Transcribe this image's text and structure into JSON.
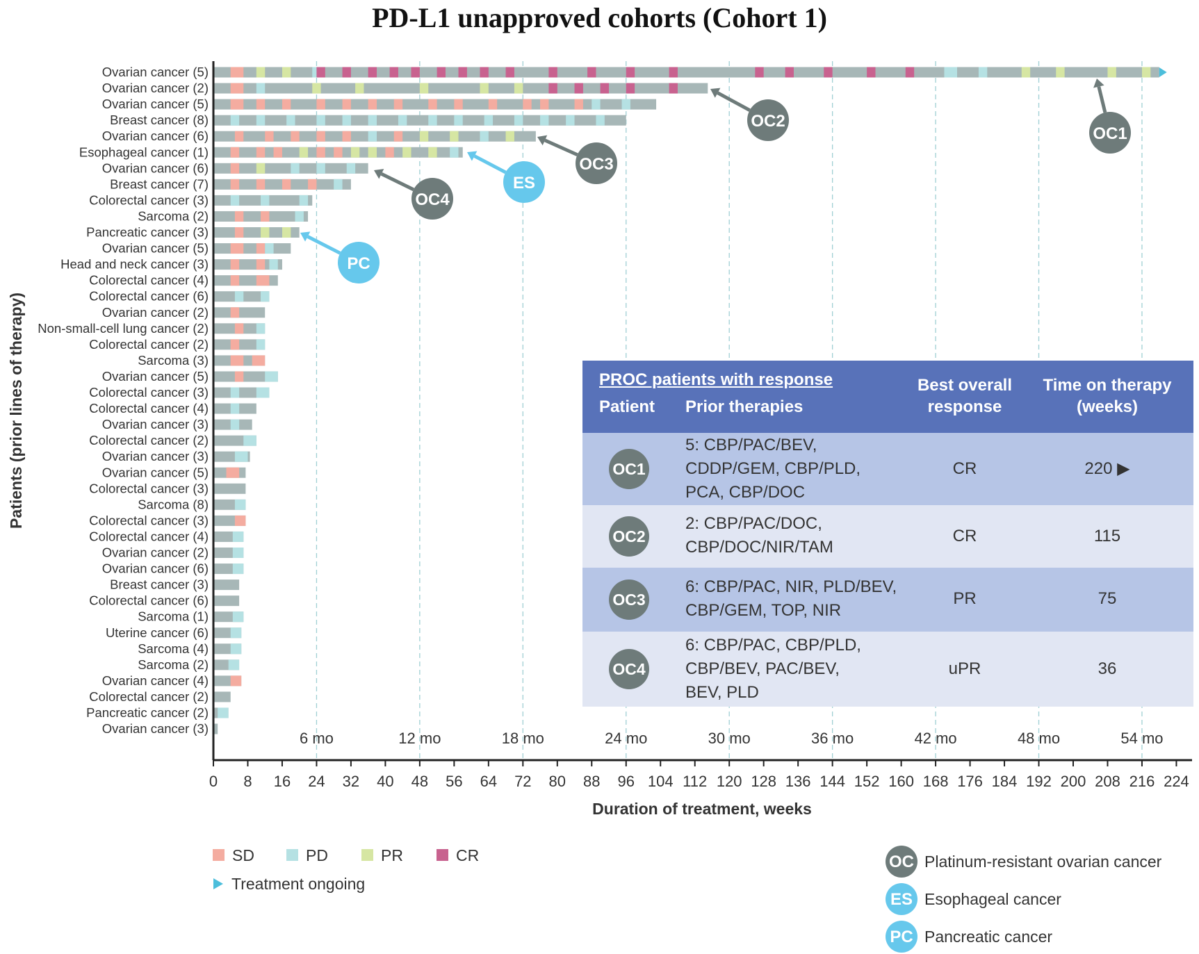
{
  "chart_data": {
    "type": "swimmer",
    "title": "PD-L1 unapproved cohorts (Cohort 1)",
    "xlabel": "Duration of treatment, weeks",
    "ylabel": "Patients (prior lines of therapy)",
    "xlim": [
      0,
      224
    ],
    "x_ticks": [
      "0",
      "8",
      "16",
      "24",
      "32",
      "40",
      "48",
      "56",
      "64",
      "72",
      "80",
      "88",
      "96",
      "104",
      "112",
      "120",
      "128",
      "136",
      "144",
      "152",
      "160",
      "168",
      "176",
      "184",
      "192",
      "200",
      "208",
      "216",
      "224"
    ],
    "month_markers": [
      {
        "label": "6 mo",
        "week": 24
      },
      {
        "label": "12 mo",
        "week": 48
      },
      {
        "label": "18 mo",
        "week": 72
      },
      {
        "label": "24 mo",
        "week": 96
      },
      {
        "label": "30 mo",
        "week": 120
      },
      {
        "label": "36 mo",
        "week": 144
      },
      {
        "label": "42 mo",
        "week": 168
      },
      {
        "label": "48 mo",
        "week": 192
      },
      {
        "label": "54 mo",
        "week": 216
      }
    ],
    "patients": [
      {
        "label": "Ovarian cancer (5)",
        "weeks": 220,
        "ongoing": true,
        "tag": "OC1",
        "segments": [
          [
            4,
            7,
            "SD"
          ],
          [
            10,
            12,
            "PR"
          ],
          [
            16,
            18,
            "PR"
          ],
          [
            23,
            25,
            "PD"
          ],
          [
            24,
            26,
            "CR"
          ],
          [
            30,
            32,
            "CR"
          ],
          [
            36,
            38,
            "CR"
          ],
          [
            41,
            43,
            "CR"
          ],
          [
            46,
            48,
            "CR"
          ],
          [
            52,
            54,
            "CR"
          ],
          [
            57,
            59,
            "CR"
          ],
          [
            62,
            64,
            "CR"
          ],
          [
            68,
            70,
            "CR"
          ],
          [
            78,
            80,
            "CR"
          ],
          [
            87,
            89,
            "CR"
          ],
          [
            96,
            98,
            "CR"
          ],
          [
            106,
            108,
            "CR"
          ],
          [
            126,
            128,
            "CR"
          ],
          [
            133,
            135,
            "CR"
          ],
          [
            142,
            144,
            "CR"
          ],
          [
            152,
            154,
            "CR"
          ],
          [
            161,
            163,
            "CR"
          ],
          [
            170,
            173,
            "PD"
          ],
          [
            178,
            180,
            "PD"
          ],
          [
            188,
            190,
            "PR"
          ],
          [
            196,
            198,
            "PR"
          ],
          [
            208,
            210,
            "PR"
          ],
          [
            216,
            218,
            "PR"
          ]
        ]
      },
      {
        "label": "Ovarian cancer (2)",
        "weeks": 115,
        "tag": "OC2",
        "segments": [
          [
            4,
            7,
            "SD"
          ],
          [
            10,
            12,
            "PD"
          ],
          [
            23,
            25,
            "PR"
          ],
          [
            33,
            35,
            "PR"
          ],
          [
            48,
            50,
            "PR"
          ],
          [
            62,
            64,
            "PR"
          ],
          [
            70,
            72,
            "PR"
          ],
          [
            78,
            80,
            "CR"
          ],
          [
            84,
            86,
            "CR"
          ],
          [
            90,
            92,
            "CR"
          ],
          [
            96,
            98,
            "CR"
          ],
          [
            106,
            108,
            "CR"
          ]
        ]
      },
      {
        "label": "Ovarian cancer (5)",
        "weeks": 103,
        "segments": [
          [
            4,
            7,
            "SD"
          ],
          [
            10,
            12,
            "SD"
          ],
          [
            16,
            18,
            "SD"
          ],
          [
            24,
            26,
            "SD"
          ],
          [
            30,
            32,
            "SD"
          ],
          [
            36,
            38,
            "SD"
          ],
          [
            42,
            44,
            "SD"
          ],
          [
            50,
            52,
            "SD"
          ],
          [
            56,
            58,
            "SD"
          ],
          [
            64,
            66,
            "SD"
          ],
          [
            72,
            74,
            "SD"
          ],
          [
            76,
            78,
            "SD"
          ],
          [
            84,
            86,
            "SD"
          ],
          [
            88,
            90,
            "PD"
          ],
          [
            95,
            97,
            "PD"
          ]
        ]
      },
      {
        "label": "Breast cancer (8)",
        "weeks": 96,
        "segments": [
          [
            4,
            6,
            "PD"
          ],
          [
            10,
            12,
            "PD"
          ],
          [
            17,
            19,
            "PD"
          ],
          [
            24,
            26,
            "PD"
          ],
          [
            30,
            32,
            "PD"
          ],
          [
            36,
            38,
            "PD"
          ],
          [
            43,
            45,
            "PD"
          ],
          [
            50,
            52,
            "PD"
          ],
          [
            56,
            58,
            "PD"
          ],
          [
            63,
            65,
            "PD"
          ],
          [
            70,
            72,
            "PD"
          ],
          [
            76,
            78,
            "PD"
          ],
          [
            82,
            84,
            "PD"
          ],
          [
            89,
            91,
            "PD"
          ]
        ]
      },
      {
        "label": "Ovarian cancer (6)",
        "weeks": 75,
        "tag": "OC3",
        "segments": [
          [
            5,
            7,
            "SD"
          ],
          [
            12,
            14,
            "SD"
          ],
          [
            18,
            20,
            "SD"
          ],
          [
            24,
            26,
            "SD"
          ],
          [
            30,
            32,
            "SD"
          ],
          [
            36,
            38,
            "PD"
          ],
          [
            42,
            44,
            "SD"
          ],
          [
            48,
            50,
            "PR"
          ],
          [
            55,
            57,
            "PR"
          ],
          [
            62,
            64,
            "PD"
          ],
          [
            68,
            70,
            "PR"
          ]
        ]
      },
      {
        "label": "Esophageal cancer (1)",
        "weeks": 58,
        "tag": "ES",
        "segments": [
          [
            4,
            6,
            "SD"
          ],
          [
            10,
            12,
            "SD"
          ],
          [
            14,
            16,
            "SD"
          ],
          [
            20,
            22,
            "PR"
          ],
          [
            24,
            26,
            "SD"
          ],
          [
            28,
            30,
            "SD"
          ],
          [
            32,
            34,
            "PR"
          ],
          [
            36,
            38,
            "PR"
          ],
          [
            40,
            42,
            "SD"
          ],
          [
            44,
            46,
            "PR"
          ],
          [
            50,
            52,
            "PR"
          ],
          [
            55,
            57,
            "PD"
          ]
        ]
      },
      {
        "label": "Ovarian cancer (6)",
        "weeks": 36,
        "tag": "OC4",
        "segments": [
          [
            4,
            6,
            "SD"
          ],
          [
            10,
            12,
            "PR"
          ],
          [
            18,
            20,
            "PD"
          ],
          [
            24,
            26,
            "PD"
          ],
          [
            31,
            33,
            "PD"
          ]
        ]
      },
      {
        "label": "Breast cancer (7)",
        "weeks": 32,
        "segments": [
          [
            4,
            6,
            "SD"
          ],
          [
            10,
            12,
            "SD"
          ],
          [
            16,
            18,
            "SD"
          ],
          [
            22,
            24,
            "SD"
          ],
          [
            28,
            30,
            "PD"
          ]
        ]
      },
      {
        "label": "Colorectal cancer (3)",
        "weeks": 23,
        "segments": [
          [
            4,
            6,
            "PD"
          ],
          [
            11,
            13,
            "PD"
          ],
          [
            20,
            22,
            "PD"
          ]
        ]
      },
      {
        "label": "Sarcoma (2)",
        "weeks": 22,
        "segments": [
          [
            5,
            7,
            "SD"
          ],
          [
            11,
            13,
            "SD"
          ],
          [
            19,
            21,
            "PD"
          ]
        ]
      },
      {
        "label": "Pancreatic cancer (3)",
        "weeks": 20,
        "tag": "PC",
        "segments": [
          [
            5,
            7,
            "SD"
          ],
          [
            11,
            13,
            "PR"
          ],
          [
            16,
            18,
            "PR"
          ]
        ]
      },
      {
        "label": "Ovarian cancer (5)",
        "weeks": 18,
        "segments": [
          [
            4,
            7,
            "SD"
          ],
          [
            10,
            12,
            "SD"
          ],
          [
            12,
            14,
            "PD"
          ]
        ]
      },
      {
        "label": "Head and neck cancer (3)",
        "weeks": 16,
        "segments": [
          [
            4,
            6,
            "SD"
          ],
          [
            10,
            12,
            "SD"
          ],
          [
            13,
            15,
            "PD"
          ]
        ]
      },
      {
        "label": "Colorectal cancer (4)",
        "weeks": 15,
        "segments": [
          [
            4,
            6,
            "SD"
          ],
          [
            10,
            13,
            "SD"
          ]
        ]
      },
      {
        "label": "Colorectal cancer (6)",
        "weeks": 13,
        "segments": [
          [
            5,
            7,
            "PD"
          ],
          [
            11,
            13,
            "PD"
          ]
        ]
      },
      {
        "label": "Ovarian cancer (2)",
        "weeks": 12,
        "segments": [
          [
            4,
            6,
            "SD"
          ]
        ]
      },
      {
        "label": "Non-small-cell lung cancer (2)",
        "weeks": 12,
        "segments": [
          [
            5,
            7,
            "SD"
          ],
          [
            10,
            12,
            "PD"
          ]
        ]
      },
      {
        "label": "Colorectal cancer (2)",
        "weeks": 12,
        "segments": [
          [
            4,
            6,
            "SD"
          ],
          [
            10,
            12,
            "PD"
          ]
        ]
      },
      {
        "label": "Sarcoma (3)",
        "weeks": 12,
        "segments": [
          [
            4,
            7,
            "SD"
          ],
          [
            9,
            12,
            "SD"
          ]
        ]
      },
      {
        "label": "Ovarian cancer (5)",
        "weeks": 15,
        "segments": [
          [
            5,
            7,
            "SD"
          ],
          [
            12,
            15,
            "PD"
          ]
        ]
      },
      {
        "label": "Colorectal cancer (3)",
        "weeks": 13,
        "segments": [
          [
            4,
            6,
            "PD"
          ],
          [
            10,
            13,
            "PD"
          ]
        ]
      },
      {
        "label": "Colorectal cancer (4)",
        "weeks": 10,
        "segments": [
          [
            4,
            6,
            "PD"
          ]
        ]
      },
      {
        "label": "Ovarian cancer (3)",
        "weeks": 9,
        "segments": [
          [
            4,
            6,
            "PD"
          ]
        ]
      },
      {
        "label": "Colorectal cancer (2)",
        "weeks": 10,
        "segments": [
          [
            7,
            10,
            "PD"
          ]
        ]
      },
      {
        "label": "Ovarian cancer (3)",
        "weeks": 8.5,
        "segments": [
          [
            5,
            8,
            "PD"
          ]
        ]
      },
      {
        "label": "Ovarian cancer (5)",
        "weeks": 7.5,
        "segments": [
          [
            3,
            6,
            "SD"
          ]
        ]
      },
      {
        "label": "Colorectal cancer (3)",
        "weeks": 7.5,
        "segments": []
      },
      {
        "label": "Sarcoma (8)",
        "weeks": 7.5,
        "segments": [
          [
            5,
            7.5,
            "PD"
          ]
        ]
      },
      {
        "label": "Colorectal cancer (3)",
        "weeks": 7.5,
        "segments": [
          [
            5,
            7.5,
            "SD"
          ]
        ]
      },
      {
        "label": "Colorectal cancer (4)",
        "weeks": 7,
        "segments": [
          [
            4.5,
            7,
            "PD"
          ]
        ]
      },
      {
        "label": "Ovarian cancer (2)",
        "weeks": 7,
        "segments": [
          [
            4.5,
            7,
            "PD"
          ]
        ]
      },
      {
        "label": "Ovarian cancer (6)",
        "weeks": 7,
        "segments": [
          [
            4.5,
            7,
            "PD"
          ]
        ]
      },
      {
        "label": "Breast cancer (3)",
        "weeks": 6,
        "segments": []
      },
      {
        "label": "Colorectal cancer (6)",
        "weeks": 6,
        "segments": []
      },
      {
        "label": "Sarcoma (1)",
        "weeks": 7,
        "segments": [
          [
            4.5,
            7,
            "PD"
          ]
        ]
      },
      {
        "label": "Uterine cancer (6)",
        "weeks": 6.5,
        "segments": [
          [
            4,
            6.5,
            "PD"
          ]
        ]
      },
      {
        "label": "Sarcoma (4)",
        "weeks": 6.5,
        "segments": [
          [
            4,
            6.5,
            "PD"
          ]
        ]
      },
      {
        "label": "Sarcoma (2)",
        "weeks": 6,
        "segments": [
          [
            3.5,
            6,
            "PD"
          ]
        ]
      },
      {
        "label": "Ovarian cancer (4)",
        "weeks": 6.5,
        "segments": [
          [
            4,
            6.5,
            "SD"
          ]
        ]
      },
      {
        "label": "Colorectal cancer (2)",
        "weeks": 4,
        "segments": []
      },
      {
        "label": "Pancreatic cancer (2)",
        "weeks": 3.5,
        "segments": [
          [
            1,
            3.5,
            "PD"
          ]
        ]
      },
      {
        "label": "Ovarian cancer (3)",
        "weeks": 1,
        "segments": []
      }
    ],
    "callouts": [
      {
        "tag": "OC1",
        "kind": "OC"
      },
      {
        "tag": "OC2",
        "kind": "OC"
      },
      {
        "tag": "OC3",
        "kind": "OC"
      },
      {
        "tag": "OC4",
        "kind": "OC"
      },
      {
        "tag": "ES",
        "kind": "ES"
      },
      {
        "tag": "PC",
        "kind": "PC"
      }
    ],
    "legend": [
      {
        "key": "SD",
        "label": "SD"
      },
      {
        "key": "PD",
        "label": "PD"
      },
      {
        "key": "PR",
        "label": "PR"
      },
      {
        "key": "CR",
        "label": "CR"
      }
    ],
    "ongoing_label": "Treatment ongoing",
    "type_legend": [
      {
        "tag": "OC",
        "label": "Platinum-resistant ovarian cancer",
        "kind": "OC"
      },
      {
        "tag": "ES",
        "label": "Esophageal cancer",
        "kind": "ES"
      },
      {
        "tag": "PC",
        "label": "Pancreatic cancer",
        "kind": "PC"
      }
    ],
    "colors": {
      "bar": "#a7b7b7",
      "SD": "#f4aca0",
      "PD": "#b5e1e3",
      "PR": "#d6e6a3",
      "CR": "#c8628f",
      "OC": "#6e7b7a",
      "ES": "#66c8ec",
      "PC": "#66c8ec",
      "ongoing": "#4cbedb",
      "axis": "#222222",
      "grid": "#9fcfd3"
    }
  },
  "table": {
    "heading": "PROC patients with response",
    "col_patient": "Patient",
    "col_prior": "Prior therapies",
    "col_response_1": "Best overall",
    "col_response_2": "response",
    "col_time_1": "Time on therapy",
    "col_time_2": "(weeks)",
    "rows": [
      {
        "patient": "OC1",
        "prior": [
          "5: CBP/PAC/BEV,",
          "CDDP/GEM, CBP/PLD,",
          "PCA, CBP/DOC"
        ],
        "response": "CR",
        "time": "220 ▶"
      },
      {
        "patient": "OC2",
        "prior": [
          "2: CBP/PAC/DOC,",
          "CBP/DOC/NIR/TAM"
        ],
        "response": "CR",
        "time": "115"
      },
      {
        "patient": "OC3",
        "prior": [
          "6: CBP/PAC, NIR, PLD/BEV,",
          "CBP/GEM, TOP, NIR"
        ],
        "response": "PR",
        "time": "75"
      },
      {
        "patient": "OC4",
        "prior": [
          "6: CBP/PAC, CBP/PLD,",
          "CBP/BEV, PAC/BEV,",
          "BEV, PLD"
        ],
        "response": "uPR",
        "time": "36"
      }
    ]
  }
}
